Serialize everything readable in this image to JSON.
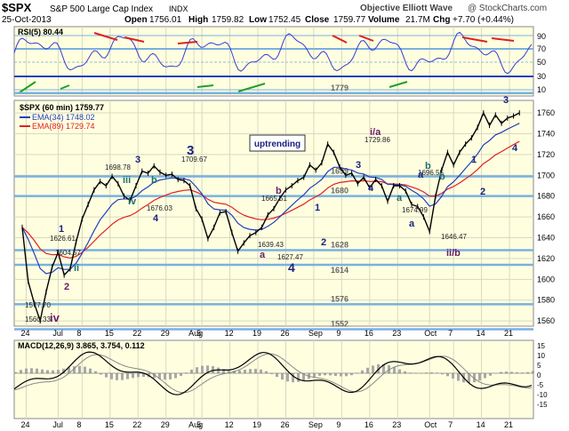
{
  "header": {
    "symbol": "$SPX",
    "index_name": "S&P 500 Large Cap Index",
    "exchange": "INDX",
    "date": "25-Oct-2013",
    "open_label": "Open",
    "open": "1756.01",
    "high_label": "High",
    "high": "1759.82",
    "low_label": "Low",
    "low": "1752.45",
    "close_label": "Close",
    "close": "1759.77",
    "volume_label": "Volume",
    "volume": "21.7M",
    "chg_label": "Chg",
    "chg": "+7.70 (+0.44%)",
    "watermark": "Objective Elliott Wave",
    "site": "@ StockCharts.com"
  },
  "colors": {
    "panel_bg": "#ffffe0",
    "price": "#000000",
    "ema34": "#1f3fbf",
    "ema89": "#e02020",
    "rsi_line": "#3a3ad6",
    "level_line": "#7ab0e0",
    "trend_red": "#e02020",
    "trend_green": "#22a022",
    "wave_navy": "#1a237e",
    "wave_purple": "#6a1b6a",
    "wave_teal": "#1e7070"
  },
  "rsi_panel": {
    "label": "RSI(5) 80.44",
    "ticks": [
      "90",
      "70",
      "50",
      "30",
      "10"
    ]
  },
  "price_panel": {
    "legend_title": "$SPX (60 min) 1759.77",
    "ema34_label": "EMA(34) 1748.02",
    "ema89_label": "EMA(89) 1729.74",
    "annotation_box": "uptrending"
  },
  "macd_panel": {
    "label": "MACD(12,26,9) 3.865, 3.754, 0.112",
    "ticks": [
      "15",
      "10",
      "5",
      "0",
      "-5",
      "-10",
      "-15"
    ]
  },
  "chart_data": {
    "type": "line",
    "series": [
      {
        "name": "$SPX (60 min)",
        "x": [
          0,
          1,
          2,
          3,
          4,
          5,
          6,
          7,
          8,
          9,
          10,
          11,
          12,
          13,
          14,
          15,
          16,
          17,
          18,
          19,
          20,
          21,
          22,
          23,
          24,
          25,
          26,
          27,
          28,
          29,
          30,
          31,
          32,
          33,
          34,
          35,
          36,
          37,
          38,
          39,
          40,
          41,
          42,
          43,
          44,
          45,
          46,
          47,
          48,
          49,
          50,
          51,
          52,
          53,
          54,
          55,
          56,
          57,
          58,
          59,
          60,
          61,
          62,
          63,
          64,
          65,
          66,
          67,
          68,
          69,
          70,
          71,
          72,
          73,
          74,
          75,
          76,
          77,
          78,
          79,
          80,
          81,
          82,
          83
        ],
        "values": [
          1650,
          1598,
          1577,
          1560,
          1588,
          1612,
          1626,
          1604,
          1610,
          1636,
          1658,
          1672,
          1686,
          1694,
          1690,
          1699,
          1692,
          1680,
          1676,
          1690,
          1704,
          1702,
          1709,
          1703,
          1700,
          1701,
          1696,
          1695,
          1690,
          1668,
          1658,
          1639,
          1650,
          1664,
          1665,
          1645,
          1627,
          1635,
          1642,
          1645,
          1650,
          1662,
          1668,
          1678,
          1686,
          1690,
          1695,
          1698,
          1710,
          1705,
          1712,
          1730,
          1722,
          1708,
          1700,
          1702,
          1692,
          1698,
          1688,
          1696,
          1690,
          1675,
          1690,
          1690,
          1685,
          1672,
          1670,
          1660,
          1646,
          1680,
          1705,
          1722,
          1710,
          1722,
          1730,
          1736,
          1746,
          1760,
          1748,
          1758,
          1750,
          1755,
          1757,
          1760
        ]
      }
    ],
    "y_ticks": [
      "1760",
      "1740",
      "1720",
      "1700",
      "1680",
      "1660",
      "1640",
      "1620",
      "1600",
      "1580",
      "1560"
    ],
    "ylim": [
      1555,
      1772
    ],
    "x_tick_labels": [
      {
        "label": "24",
        "x": 3
      },
      {
        "label": "Jul",
        "x": 11
      },
      {
        "label": "8",
        "x": 17
      },
      {
        "label": "15",
        "x": 24
      },
      {
        "label": "22",
        "x": 31
      },
      {
        "label": "29",
        "x": 38
      },
      {
        "label": "Aug",
        "x": 45
      },
      {
        "label": "5",
        "x": 47
      },
      {
        "label": "12",
        "x": 54
      },
      {
        "label": "19",
        "x": 61
      },
      {
        "label": "26",
        "x": 68
      },
      {
        "label": "Sep",
        "x": 75
      },
      {
        "label": "9",
        "x": 82
      },
      {
        "label": "16",
        "x": 89
      },
      {
        "label": "23",
        "x": 96
      },
      {
        "label": "Oct",
        "x": 104
      },
      {
        "label": "7",
        "x": 110
      },
      {
        "label": "14",
        "x": 117
      },
      {
        "label": "21",
        "x": 124
      }
    ],
    "x_domain": [
      0,
      130
    ],
    "horizontal_levels": [
      {
        "value": 1779,
        "label": "1779"
      },
      {
        "value": 1699,
        "label": "1699"
      },
      {
        "value": 1680,
        "label": "1680"
      },
      {
        "value": 1628,
        "label": "1628"
      },
      {
        "value": 1614,
        "label": "1614"
      },
      {
        "value": 1576,
        "label": "1576"
      },
      {
        "value": 1552,
        "label": "1552"
      }
    ],
    "price_labels": [
      "1626.61",
      "1604.57",
      "1577.70",
      "1560.33",
      "1698.78",
      "1676.03",
      "1709.67",
      "1665.51",
      "1639.43",
      "1627.47",
      "1729.86",
      "1696.55",
      "1674.99",
      "1646.47"
    ],
    "wave_labels": [
      "1",
      "2",
      "ii",
      "iv",
      "3",
      "iii",
      "iv",
      "b",
      "4",
      "3",
      "a",
      "b",
      "1",
      "2",
      "4",
      "i/a",
      "3",
      "4",
      "a",
      "b",
      "a",
      "b",
      "a",
      "ii/b",
      "1",
      "2",
      "3",
      "4"
    ]
  }
}
